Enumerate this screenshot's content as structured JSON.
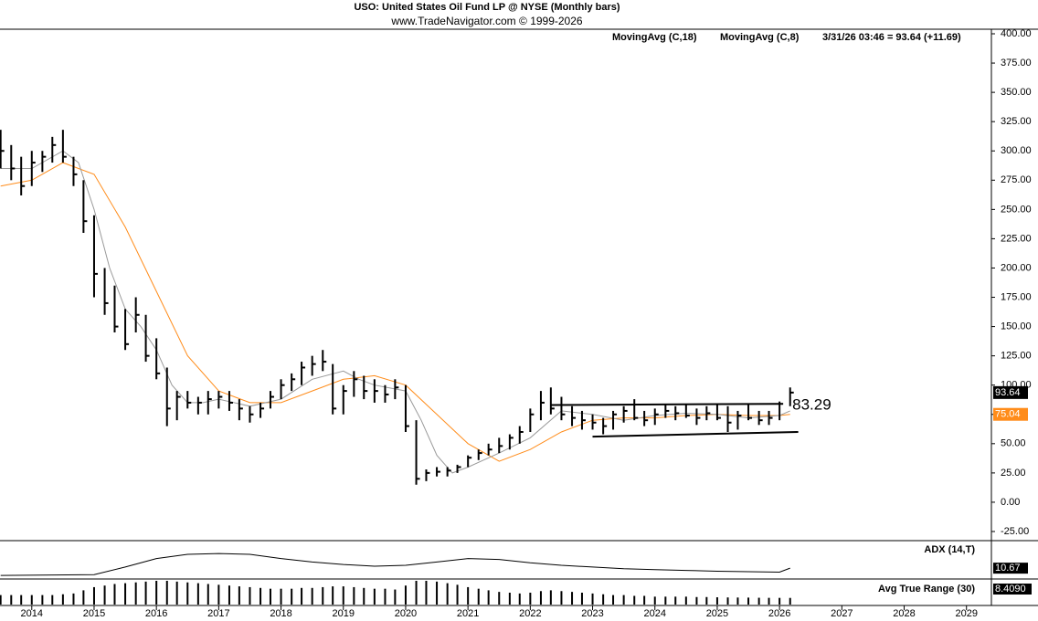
{
  "header": {
    "title": "USO:  United States Oil Fund LP @ NYSE  (Monthly bars)",
    "source": "www.TradeNavigator.com © 1999-2026"
  },
  "chart_data": {
    "type": "ohlc",
    "color": "#000000",
    "xlim": [
      2013.49,
      2029.4
    ],
    "xticks": [
      2014,
      2015,
      2016,
      2017,
      2018,
      2019,
      2020,
      2021,
      2022,
      2023,
      2024,
      2025,
      2026,
      2027,
      2028,
      2029
    ],
    "ylim": [
      -32.8,
      403.9
    ],
    "yticks": [
      {
        "value": -25,
        "label": "-25.00"
      },
      {
        "value": 0,
        "label": "0.00"
      },
      {
        "value": 25,
        "label": "25.00"
      },
      {
        "value": 50,
        "label": "50.00"
      },
      {
        "value": 75,
        "label": "75.00"
      },
      {
        "value": 100,
        "label": "100.00"
      },
      {
        "value": 125,
        "label": "125.00"
      },
      {
        "value": 150,
        "label": "150.00"
      },
      {
        "value": 175,
        "label": "175.00"
      },
      {
        "value": 200,
        "label": "200.00"
      },
      {
        "value": 225,
        "label": "225.00"
      },
      {
        "value": 250,
        "label": "250.00"
      },
      {
        "value": 275,
        "label": "275.00"
      },
      {
        "value": 300,
        "label": "300.00"
      },
      {
        "value": 325,
        "label": "325.00"
      },
      {
        "value": 350,
        "label": "350.00"
      },
      {
        "value": 375,
        "label": "375.00"
      },
      {
        "value": 400,
        "label": "400.00"
      }
    ],
    "x": [
      2013.5,
      2013.67,
      2013.83,
      2014,
      2014.17,
      2014.33,
      2014.5,
      2014.67,
      2014.83,
      2015,
      2015.17,
      2015.33,
      2015.5,
      2015.67,
      2015.83,
      2016,
      2016.17,
      2016.33,
      2016.5,
      2016.67,
      2016.83,
      2017,
      2017.17,
      2017.33,
      2017.5,
      2017.67,
      2017.83,
      2018,
      2018.17,
      2018.33,
      2018.5,
      2018.67,
      2018.83,
      2019,
      2019.17,
      2019.33,
      2019.5,
      2019.67,
      2019.83,
      2020,
      2020.17,
      2020.33,
      2020.5,
      2020.67,
      2020.83,
      2021,
      2021.17,
      2021.33,
      2021.5,
      2021.67,
      2021.83,
      2022,
      2022.17,
      2022.33,
      2022.5,
      2022.67,
      2022.83,
      2023,
      2023.17,
      2023.33,
      2023.5,
      2023.67,
      2023.83,
      2024,
      2024.17,
      2024.33,
      2024.5,
      2024.67,
      2024.83,
      2025,
      2025.17,
      2025.33,
      2025.5,
      2025.67,
      2025.83,
      2026,
      2026.17
    ],
    "high": [
      318,
      305,
      295,
      300,
      300,
      312,
      318,
      295,
      275,
      245,
      200,
      185,
      165,
      175,
      160,
      140,
      115,
      95,
      95,
      90,
      95,
      95,
      95,
      88,
      82,
      85,
      95,
      105,
      110,
      120,
      125,
      130,
      118,
      100,
      112,
      108,
      105,
      100,
      105,
      100,
      70,
      28,
      30,
      30,
      32,
      40,
      45,
      50,
      55,
      58,
      65,
      80,
      95,
      98,
      90,
      82,
      78,
      75,
      72,
      78,
      82,
      88,
      78,
      80,
      84,
      82,
      84,
      80,
      82,
      84,
      82,
      78,
      84,
      78,
      78,
      86,
      98
    ],
    "low": [
      285,
      275,
      262,
      270,
      282,
      290,
      290,
      270,
      230,
      175,
      160,
      145,
      130,
      145,
      120,
      105,
      65,
      70,
      80,
      75,
      75,
      80,
      78,
      70,
      68,
      72,
      80,
      88,
      95,
      100,
      108,
      112,
      75,
      75,
      90,
      88,
      85,
      85,
      88,
      60,
      15,
      18,
      22,
      22,
      25,
      30,
      36,
      40,
      42,
      45,
      50,
      60,
      70,
      75,
      70,
      65,
      62,
      62,
      58,
      62,
      68,
      70,
      65,
      66,
      72,
      70,
      72,
      66,
      70,
      70,
      60,
      62,
      70,
      66,
      66,
      70,
      82
    ],
    "close": [
      300,
      285,
      270,
      290,
      295,
      305,
      295,
      280,
      240,
      195,
      170,
      150,
      135,
      160,
      125,
      110,
      80,
      90,
      85,
      85,
      88,
      90,
      85,
      80,
      75,
      80,
      90,
      100,
      105,
      115,
      118,
      120,
      80,
      95,
      105,
      95,
      95,
      92,
      98,
      65,
      20,
      25,
      26,
      27,
      30,
      38,
      42,
      45,
      48,
      55,
      60,
      75,
      85,
      80,
      75,
      72,
      70,
      68,
      65,
      75,
      78,
      72,
      70,
      75,
      78,
      76,
      74,
      72,
      76,
      72,
      68,
      74,
      72,
      70,
      72,
      84,
      93.64
    ],
    "series": [
      {
        "name": "MovingAvg (C,18)",
        "color": "#ff8c1a",
        "x": [
          2013.5,
          2014,
          2014.5,
          2015,
          2015.5,
          2016,
          2016.5,
          2017,
          2017.5,
          2018,
          2018.5,
          2019,
          2019.5,
          2020,
          2020.5,
          2021,
          2021.5,
          2022,
          2022.5,
          2023,
          2023.5,
          2024,
          2024.5,
          2025,
          2025.5,
          2026,
          2026.17
        ],
        "values": [
          270,
          275,
          290,
          280,
          235,
          180,
          125,
          95,
          85,
          85,
          95,
          105,
          108,
          100,
          75,
          50,
          35,
          45,
          60,
          70,
          72,
          72,
          74,
          75,
          74,
          74,
          75.04
        ]
      },
      {
        "name": "MovingAvg (C,8)",
        "color": "#999999",
        "x": [
          2013.5,
          2014,
          2014.5,
          2014.75,
          2015,
          2015.25,
          2015.5,
          2015.75,
          2016,
          2016.25,
          2016.5,
          2016.75,
          2017,
          2017.5,
          2018,
          2018.5,
          2019,
          2019.25,
          2019.5,
          2020,
          2020.25,
          2020.5,
          2020.75,
          2021,
          2021.5,
          2022,
          2022.5,
          2023,
          2023.5,
          2024,
          2024.5,
          2025,
          2025.5,
          2026,
          2026.17
        ],
        "values": [
          285,
          285,
          300,
          290,
          250,
          200,
          165,
          150,
          130,
          100,
          85,
          85,
          88,
          82,
          88,
          105,
          112,
          105,
          100,
          95,
          70,
          40,
          25,
          30,
          42,
          55,
          78,
          75,
          70,
          74,
          76,
          75,
          72,
          74,
          78
        ]
      }
    ],
    "last_quote": "3/31/26 03:46 = 93.64 (+11.69)",
    "value_boxes": [
      {
        "value": 93.64,
        "label": "93.64",
        "color": "#000000"
      },
      {
        "value": 75.04,
        "label": "75.04",
        "color": "#ff8c1a"
      }
    ],
    "trendlines": [
      {
        "x": [
          2022.33,
          2026.0
        ],
        "values": [
          83,
          84
        ]
      },
      {
        "x": [
          2023.0,
          2026.3
        ],
        "values": [
          56,
          60
        ]
      }
    ],
    "annotation": "83.29",
    "indicators": [
      {
        "type": "line",
        "name": "ADX (14,T)",
        "ylim": [
          0,
          40
        ],
        "value_label": "10.67",
        "x": [
          2013.5,
          2015,
          2015.5,
          2016,
          2016.5,
          2017,
          2017.5,
          2018,
          2018.5,
          2019,
          2019.5,
          2020,
          2020.5,
          2021,
          2021.5,
          2022,
          2022.5,
          2023,
          2023.5,
          2024,
          2024.5,
          2025,
          2025.5,
          2026,
          2026.17
        ],
        "values": [
          2,
          3,
          12,
          22,
          27,
          28,
          27,
          22,
          18,
          15,
          13,
          14,
          18,
          22,
          21,
          17,
          14,
          12,
          10,
          9,
          8,
          7,
          6.5,
          6,
          10.67
        ]
      },
      {
        "type": "histogram",
        "name": "Avg True Range (30)",
        "ylim": [
          0,
          30
        ],
        "value_label": "8.4090",
        "values": [
          12,
          12,
          12,
          12,
          12,
          12,
          13,
          14,
          18,
          22,
          24,
          26,
          27,
          28,
          29,
          30,
          30,
          29,
          28,
          27,
          26,
          25,
          24,
          23,
          22,
          21,
          20,
          20,
          20,
          21,
          21,
          22,
          23,
          23,
          22,
          21,
          20,
          20,
          19,
          24,
          30,
          30,
          29,
          27,
          25,
          22,
          20,
          18,
          16,
          15,
          14,
          15,
          17,
          18,
          17,
          16,
          15,
          14,
          13,
          12,
          12,
          11,
          11,
          10,
          10,
          10,
          10,
          9.5,
          9.5,
          9.2,
          9,
          8.9,
          8.8,
          8.6,
          8.5,
          8.45,
          8.409
        ]
      }
    ]
  }
}
